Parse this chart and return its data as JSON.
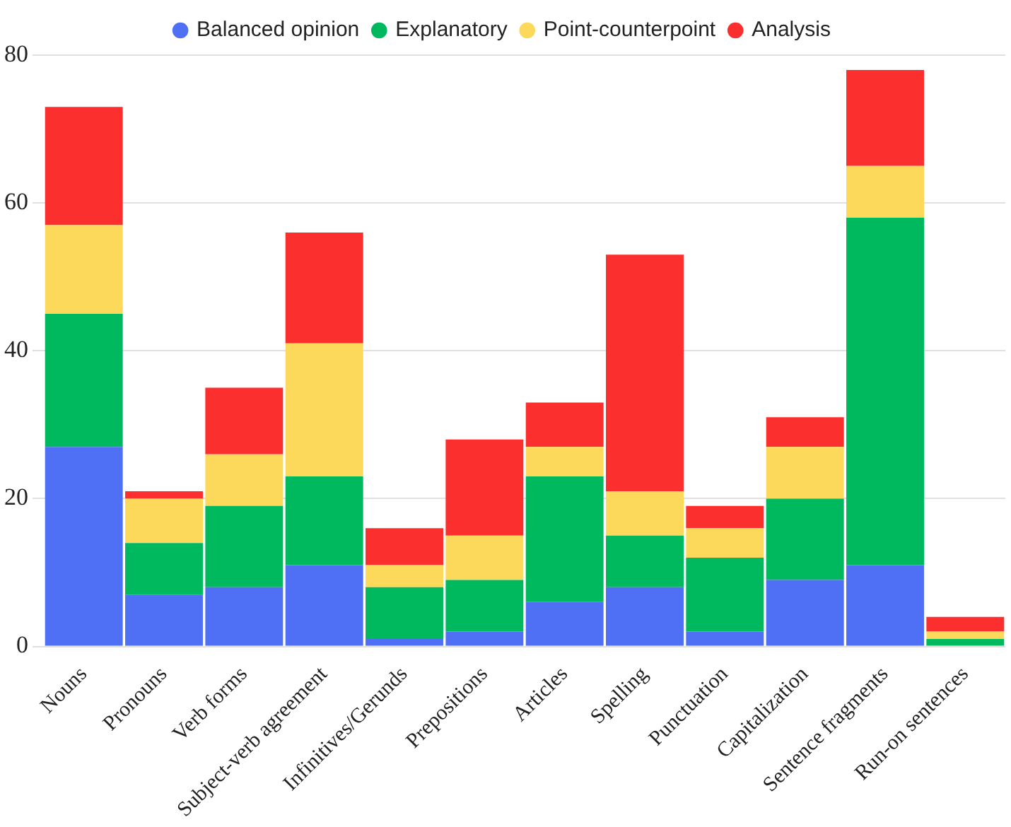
{
  "chart_data": {
    "type": "bar",
    "stacked": true,
    "categories": [
      "Nouns",
      "Pronouns",
      "Verb forms",
      "Subject-verb agreement",
      "Infinitives/Gerunds",
      "Prepositions",
      "Articles",
      "Spelling",
      "Punctuation",
      "Capitalization",
      "Sentence fragments",
      "Run-on sentences"
    ],
    "series": [
      {
        "name": "Balanced opinion",
        "color": "#4f6ff5",
        "values": [
          27,
          7,
          8,
          11,
          1,
          2,
          6,
          8,
          2,
          9,
          11,
          0
        ]
      },
      {
        "name": "Explanatory",
        "color": "#00b95e",
        "values": [
          18,
          7,
          11,
          12,
          7,
          7,
          17,
          7,
          10,
          11,
          47,
          1
        ]
      },
      {
        "name": "Point-counterpoint",
        "color": "#fcd95a",
        "values": [
          12,
          6,
          7,
          18,
          3,
          6,
          4,
          6,
          4,
          7,
          7,
          1
        ]
      },
      {
        "name": "Analysis",
        "color": "#fc2f2f",
        "values": [
          16,
          1,
          9,
          15,
          5,
          13,
          6,
          32,
          3,
          4,
          13,
          2
        ]
      }
    ],
    "ylim": [
      0,
      80
    ],
    "yticks": [
      0,
      20,
      40,
      60,
      80
    ],
    "grid": "y",
    "legend": "top"
  }
}
